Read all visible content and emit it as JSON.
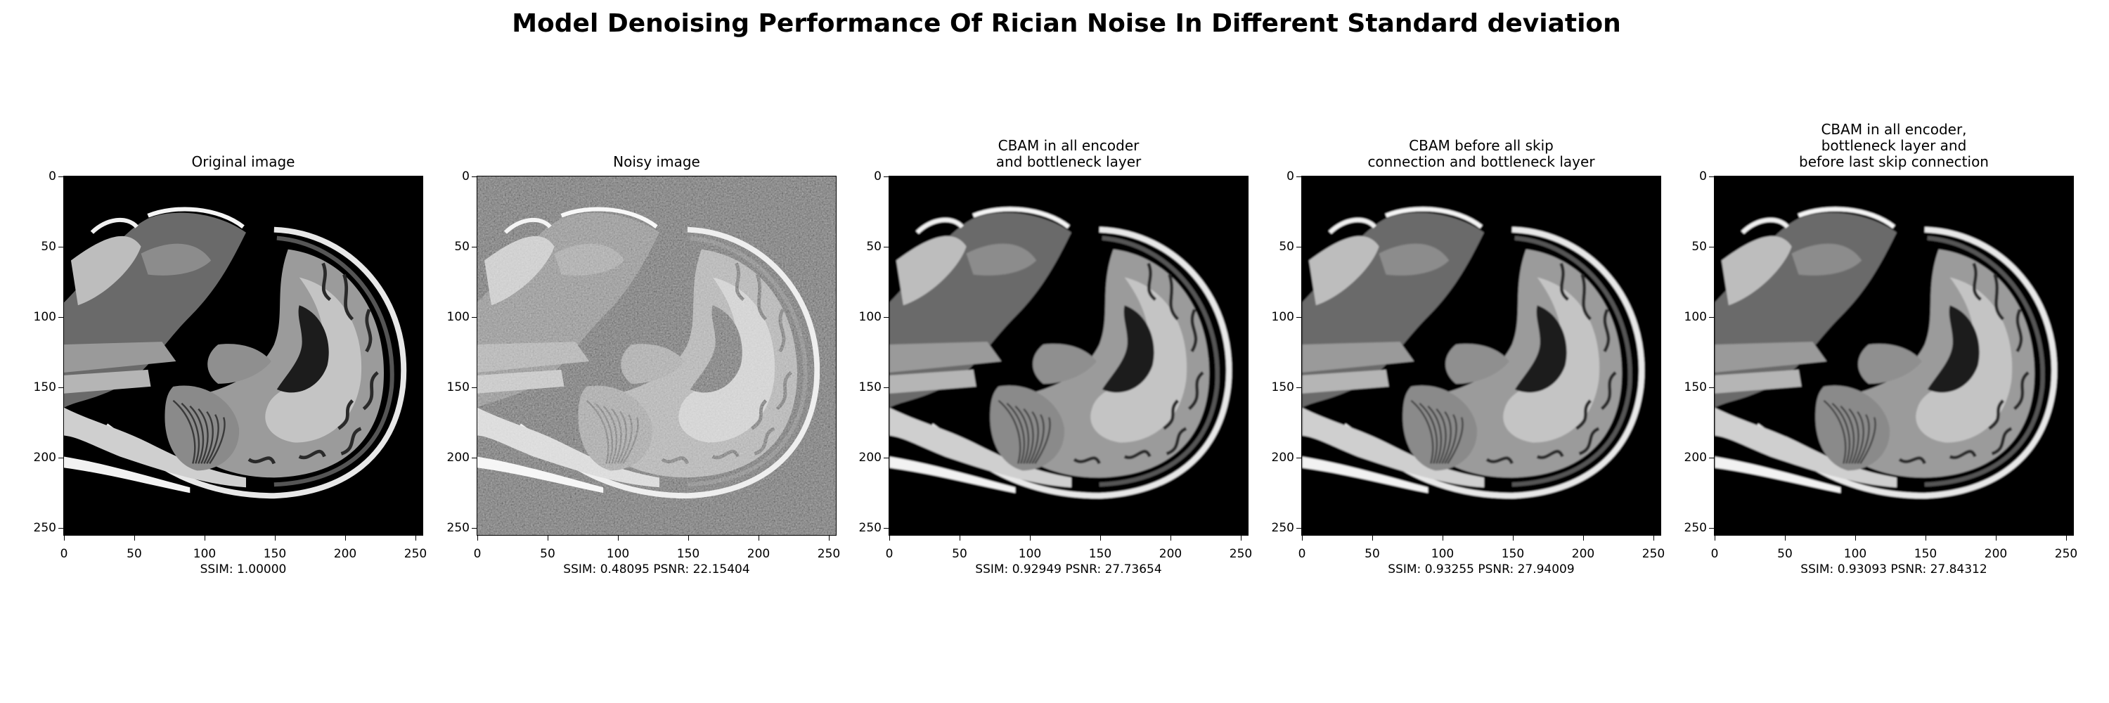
{
  "figure": {
    "title": "Model Denoising Performance Of Rician Noise In Different Standard deviation"
  },
  "panels": [
    {
      "key": "original",
      "title": "Original image",
      "metrics": "SSIM: 1.00000",
      "image": "grayscale sagittal brain MRI slice (clean reference)",
      "noise": 0.0,
      "blur": 0.0
    },
    {
      "key": "noisy",
      "title": "Noisy image",
      "metrics": "SSIM: 0.48095 PSNR: 22.15404",
      "image": "grayscale sagittal brain MRI slice corrupted by Rician noise",
      "noise": 0.55,
      "blur": 0.6
    },
    {
      "key": "cbam-encoder-bottleneck",
      "title": "CBAM in all encoder\nand bottleneck layer",
      "metrics": "SSIM: 0.92949 PSNR: 27.73654",
      "image": "denoised grayscale sagittal brain MRI slice",
      "noise": 0.0,
      "blur": 0.4
    },
    {
      "key": "cbam-skip-bottleneck",
      "title": "CBAM before all skip\nconnection and bottleneck layer",
      "metrics": "SSIM: 0.93255 PSNR: 27.94009",
      "image": "denoised grayscale sagittal brain MRI slice",
      "noise": 0.0,
      "blur": 0.4
    },
    {
      "key": "cbam-encoder-bottleneck-last-skip",
      "title": "CBAM in all encoder,\nbottleneck layer and\nbefore last skip connection",
      "metrics": "SSIM: 0.93093 PSNR: 27.84312",
      "image": "denoised grayscale sagittal brain MRI slice",
      "noise": 0.0,
      "blur": 0.4
    }
  ],
  "axes": {
    "xticks": [
      "0",
      "50",
      "100",
      "150",
      "200",
      "250"
    ],
    "yticks": [
      "0",
      "50",
      "100",
      "150",
      "200",
      "250"
    ],
    "range": [
      0,
      256
    ]
  }
}
